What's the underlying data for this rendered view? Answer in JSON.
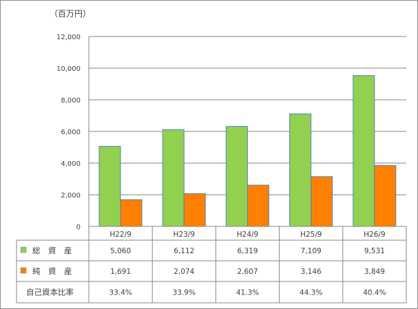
{
  "chart_data": {
    "type": "bar",
    "unit_label": "（百万円）",
    "categories": [
      "H22/9",
      "H23/9",
      "H24/9",
      "H25/9",
      "H26/9"
    ],
    "ylim": [
      0,
      12000
    ],
    "yticks": [
      "12,000",
      "10,000",
      "8,000",
      "6,000",
      "4,000",
      "2,000",
      "0"
    ],
    "ytick_values": [
      12000,
      10000,
      8000,
      6000,
      4000,
      2000,
      0
    ],
    "grid": true,
    "series": [
      {
        "name": "総　資　産",
        "values": [
          5060,
          6112,
          6319,
          7109,
          9531
        ],
        "labels": [
          "5,060",
          "6,112",
          "6,319",
          "7,109",
          "9,531"
        ],
        "color": "#92d050",
        "edge": "#4f81bd"
      },
      {
        "name": "純　資　産",
        "values": [
          1691,
          2074,
          2607,
          3146,
          3849
        ],
        "labels": [
          "1,691",
          "2,074",
          "2,607",
          "3,146",
          "3,849"
        ],
        "color": "#ff8000",
        "edge": "#4f81bd"
      }
    ],
    "ratio_row": {
      "name": "自己資本比率",
      "labels": [
        "33.4%",
        "33.9%",
        "41.3%",
        "44.3%",
        "40.4%"
      ]
    }
  }
}
